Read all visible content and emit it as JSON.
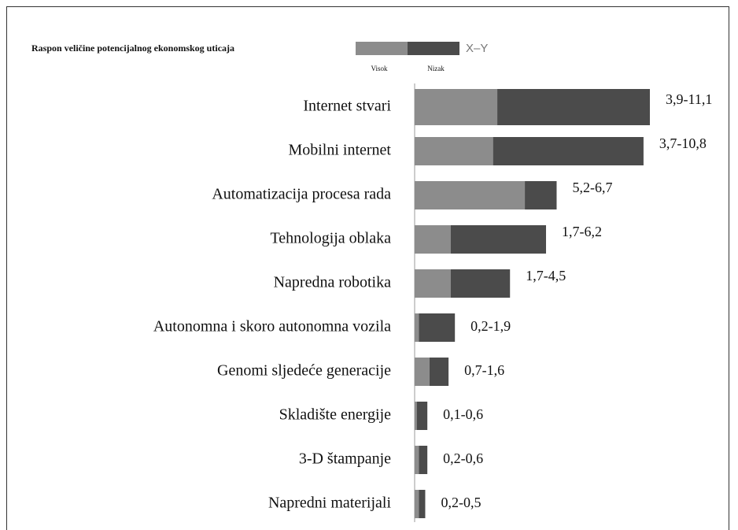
{
  "chart_data": {
    "type": "range-bar",
    "title": "Raspon veličine potencijalnog ekonomskog uticaja",
    "range_label": "X–Y",
    "categories": [
      "Internet stvari",
      "Mobilni internet",
      "Automatizacija procesa rada",
      "Tehnologija oblaka",
      "Napredna robotika",
      "Autonomna i skoro autonomna vozila",
      "Genomi sljedeće generacije",
      "Skladište energije",
      "3-D štampanje",
      "Napredni materijali"
    ],
    "series": [
      {
        "name": "Visok",
        "color": "#8c8c8c",
        "values": [
          3.9,
          3.7,
          5.2,
          1.7,
          1.7,
          0.2,
          0.7,
          0.1,
          0.2,
          0.2
        ]
      },
      {
        "name": "Nizak",
        "color": "#4b4b4b",
        "values": [
          11.1,
          10.8,
          6.7,
          6.2,
          4.5,
          1.9,
          1.6,
          0.6,
          0.6,
          0.5
        ]
      }
    ],
    "value_labels": [
      "3,9-11,1",
      "3,7-10,8",
      "5,2-6,7",
      "1,7-6,2",
      "1,7-4,5",
      "0,2-1,9",
      "0,7-1,6",
      "0,1-0,6",
      "0,2-0,6",
      "0,2-0,5"
    ]
  }
}
